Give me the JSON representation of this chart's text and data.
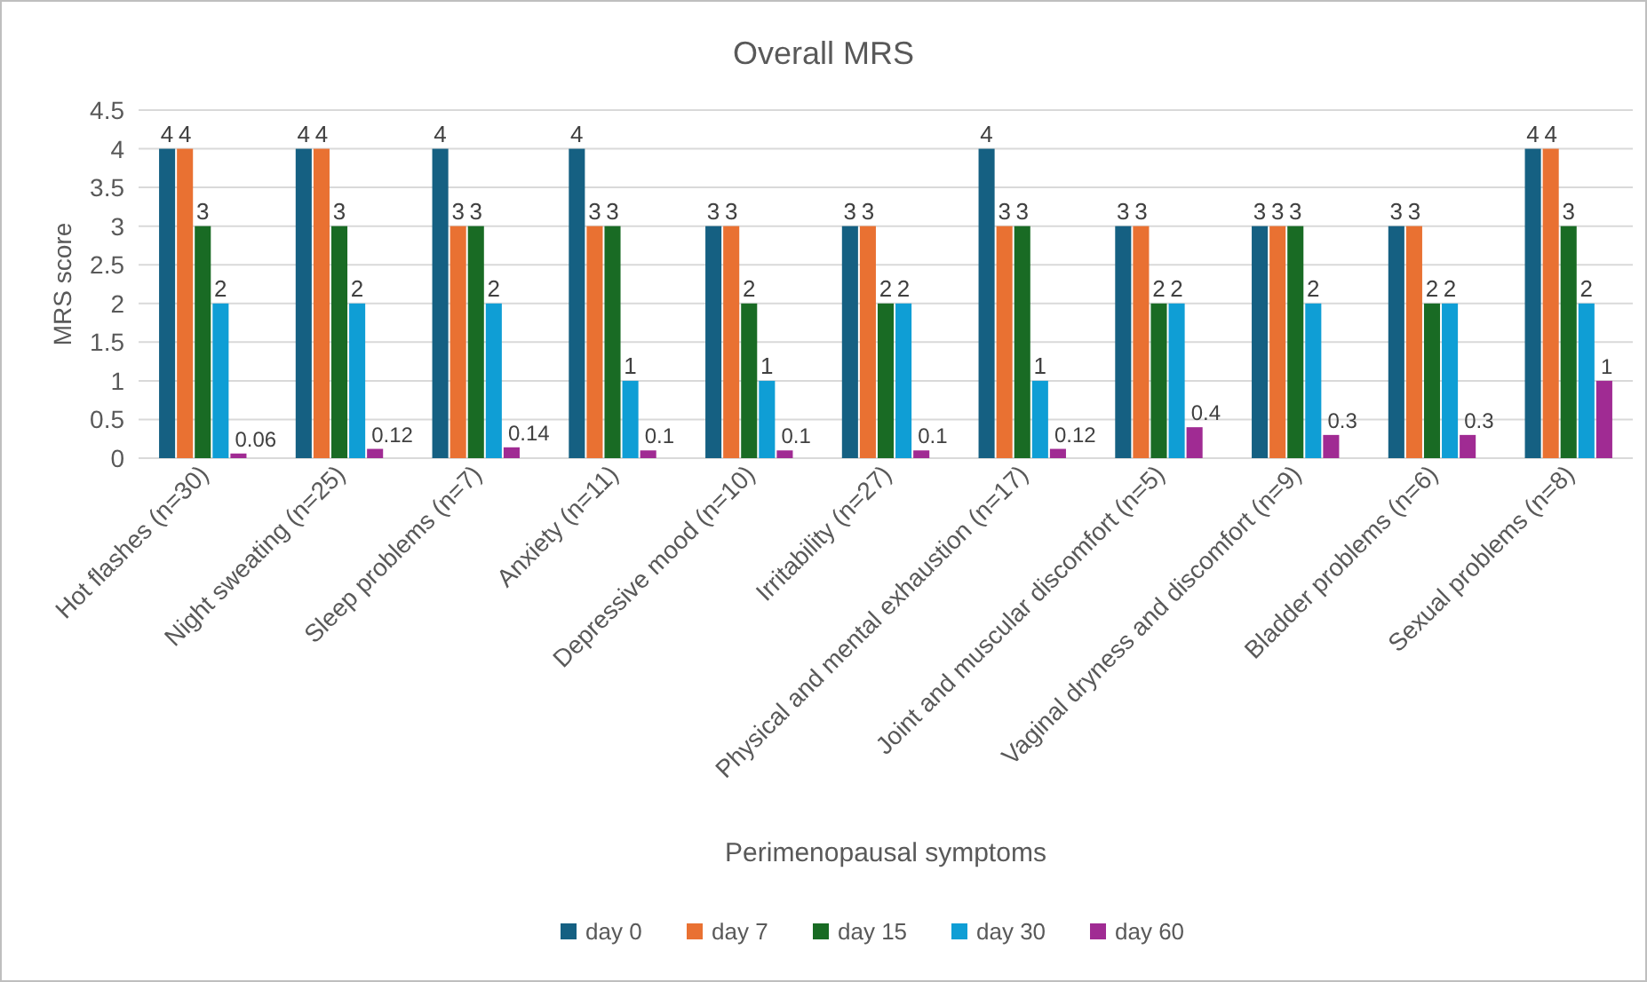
{
  "chart_data": {
    "type": "bar",
    "title": "Overall MRS",
    "xlabel": "Perimenopausal symptoms",
    "ylabel": "MRS score",
    "categories": [
      "Hot flashes (n=30)",
      "Night sweating (n=25)",
      "Sleep problems (n=7)",
      "Anxiety (n=11)",
      "Depressive mood (n=10)",
      "Irritability (n=27)",
      "Physical and mental exhaustion (n=17)",
      "Joint and muscular discomfort (n=5)",
      "Vaginal dryness and discomfort (n=9)",
      "Bladder problems (n=6)",
      "Sexual problems (n=8)"
    ],
    "series": [
      {
        "name": "day 0",
        "color": "#156082",
        "values": [
          4,
          4,
          4,
          4,
          3,
          3,
          4,
          3,
          3,
          3,
          4
        ]
      },
      {
        "name": "day 7",
        "color": "#e97132",
        "values": [
          4,
          4,
          3,
          3,
          3,
          3,
          3,
          3,
          3,
          3,
          4
        ]
      },
      {
        "name": "day 15",
        "color": "#196b24",
        "values": [
          3,
          3,
          3,
          3,
          2,
          2,
          3,
          2,
          3,
          2,
          3
        ]
      },
      {
        "name": "day 30",
        "color": "#0f9ed5",
        "values": [
          2,
          2,
          2,
          1,
          1,
          2,
          1,
          2,
          2,
          2,
          2
        ]
      },
      {
        "name": "day 60",
        "color": "#a02b93",
        "values": [
          0.06,
          0.12,
          0.14,
          0.1,
          0.1,
          0.1,
          0.12,
          0.4,
          0.3,
          0.3,
          1
        ]
      }
    ],
    "ylim": [
      0,
      4.5
    ],
    "yticks": [
      0,
      0.5,
      1,
      1.5,
      2,
      2.5,
      3,
      3.5,
      4,
      4.5
    ],
    "grid": "y",
    "legend": "bottom",
    "data_labels": true
  }
}
